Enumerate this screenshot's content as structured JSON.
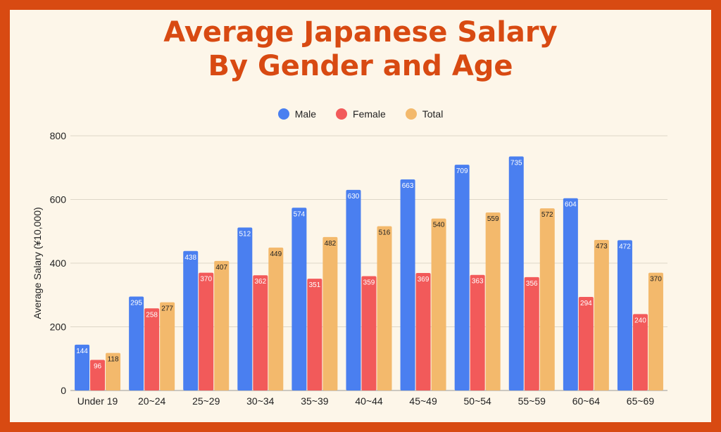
{
  "chart_data": {
    "type": "bar",
    "title_line1": "Average Japanese Salary",
    "title_line2": "By Gender and Age",
    "xlabel": "",
    "ylabel": "Average Salary (¥10,000)",
    "ylim": [
      0,
      800
    ],
    "yticks": [
      "0",
      "200",
      "400",
      "600",
      "800"
    ],
    "grid": true,
    "legend_position": "top-center",
    "categories": [
      "Under 19",
      "20~24",
      "25~29",
      "30~34",
      "35~39",
      "40~44",
      "45~49",
      "50~54",
      "55~59",
      "60~64",
      "65~69"
    ],
    "series": [
      {
        "name": "Male",
        "color": "#4a7ff0",
        "values": [
          144,
          295,
          438,
          512,
          574,
          630,
          663,
          709,
          735,
          604,
          472
        ]
      },
      {
        "name": "Female",
        "color": "#f25a5a",
        "values": [
          96,
          258,
          370,
          362,
          351,
          359,
          369,
          363,
          356,
          294,
          240
        ]
      },
      {
        "name": "Total",
        "color": "#f3b96c",
        "values": [
          118,
          277,
          407,
          449,
          482,
          516,
          540,
          559,
          572,
          473,
          370
        ]
      }
    ]
  },
  "colors": {
    "border": "#d84a12",
    "background": "#fdf6e9",
    "title": "#d84a12"
  }
}
